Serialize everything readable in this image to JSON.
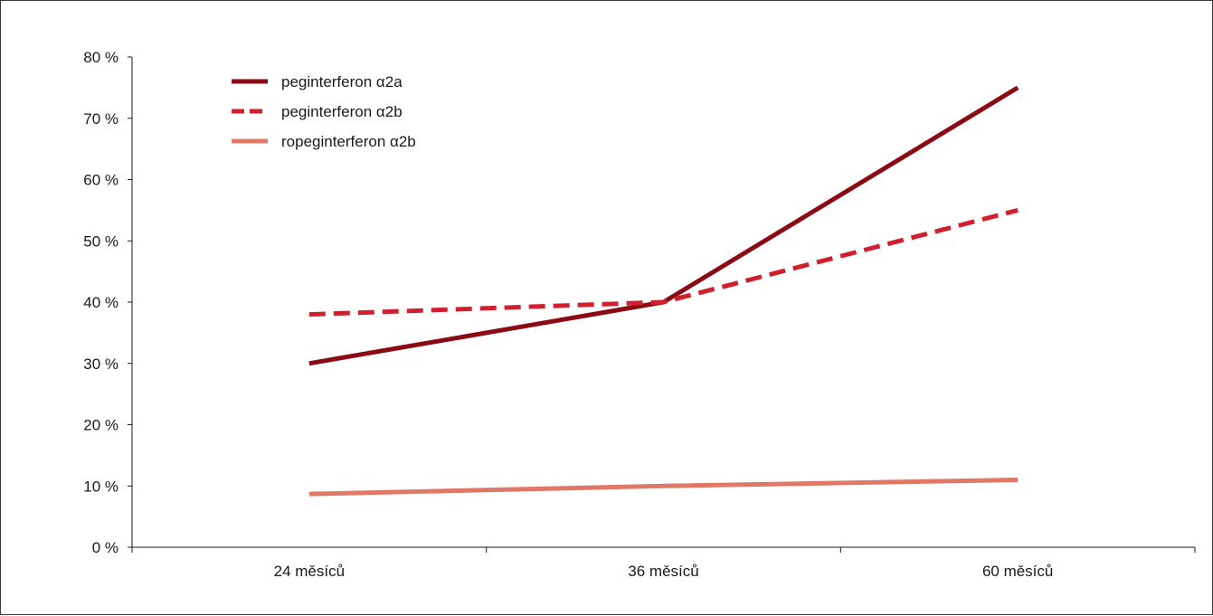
{
  "chart_data": {
    "type": "line",
    "categories": [
      "24 měsíců",
      "36 měsíců",
      "60 měsíců"
    ],
    "series": [
      {
        "name": "peginterferon α2a",
        "values": [
          30,
          40,
          75
        ],
        "color": "#8b0a14",
        "style": "solid"
      },
      {
        "name": "peginterferon α2b",
        "values": [
          38,
          40,
          55
        ],
        "color": "#d02030",
        "style": "dashed"
      },
      {
        "name": "ropeginterferon α2b",
        "values": [
          8.7,
          10,
          11
        ],
        "color": "#e07868",
        "style": "solid"
      }
    ],
    "ylim": [
      0,
      80
    ],
    "yticks": [
      0,
      10,
      20,
      30,
      40,
      50,
      60,
      70,
      80
    ],
    "ytick_suffix": " %",
    "grid": false,
    "legend_position": "top-left"
  }
}
